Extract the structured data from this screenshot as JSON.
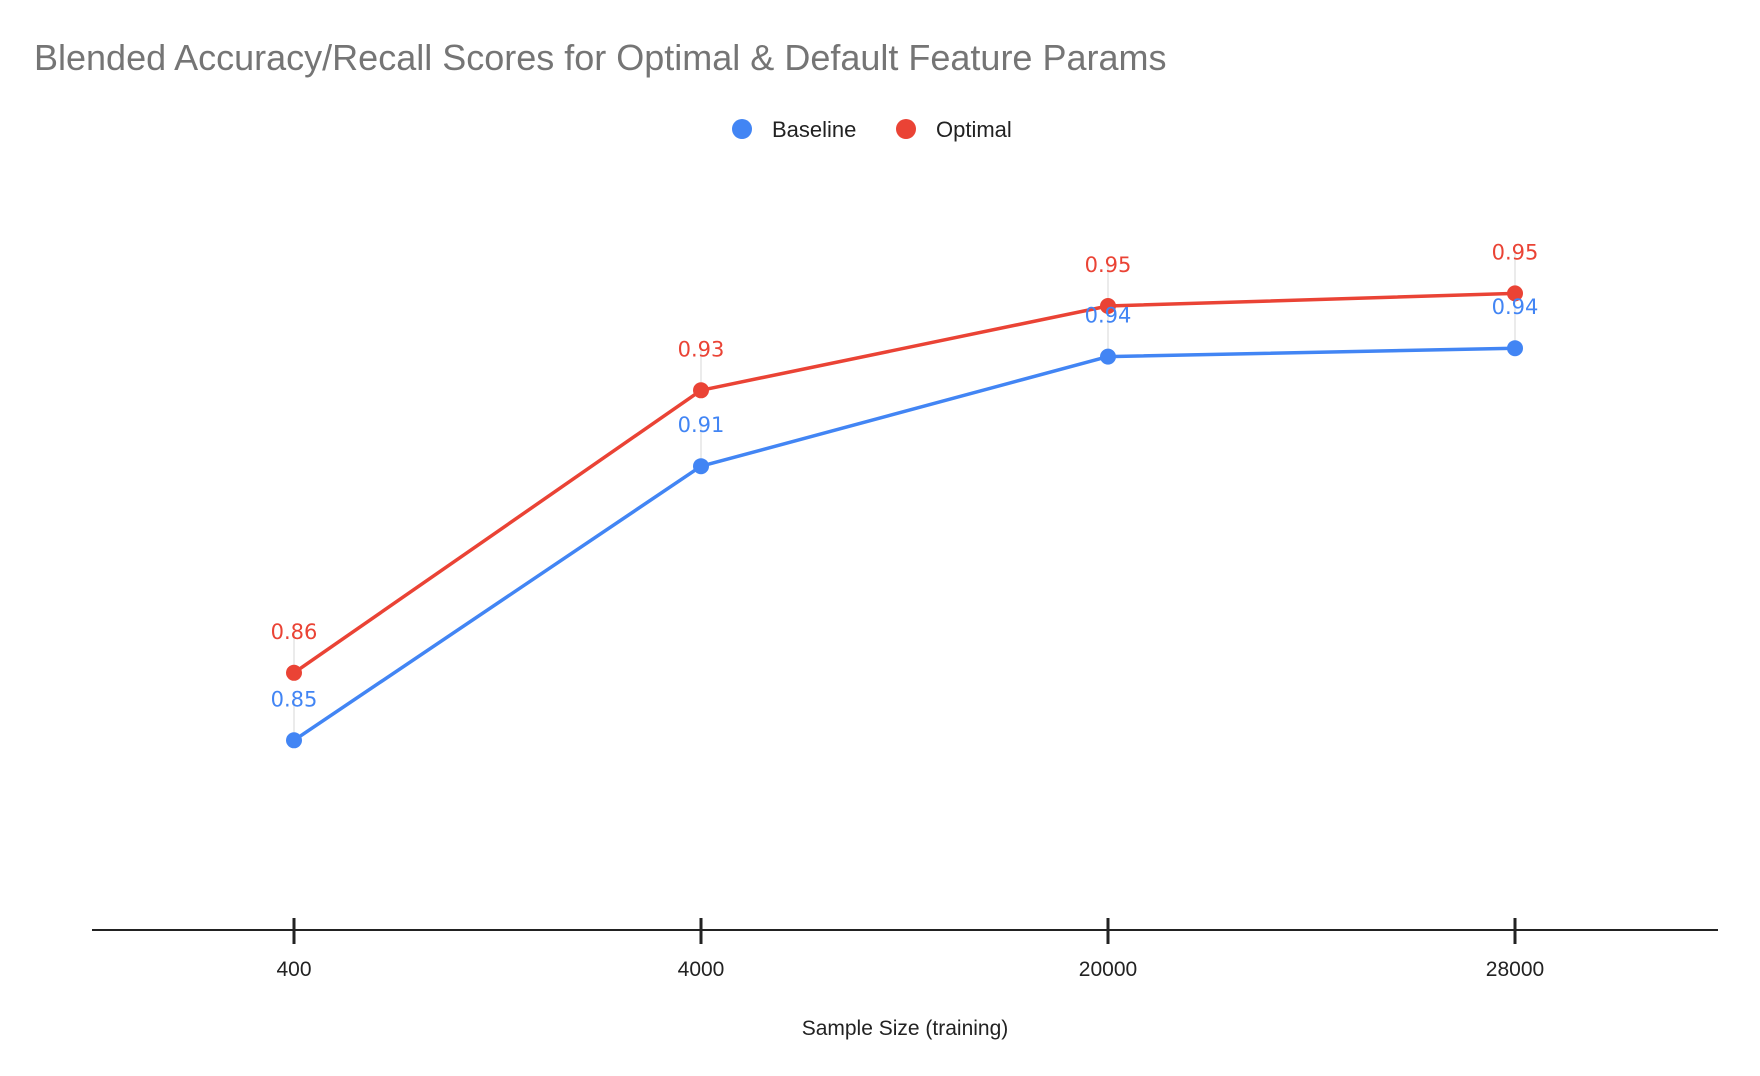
{
  "chart_data": {
    "type": "line",
    "title": "Blended Accuracy/Recall Scores for Optimal & Default Feature Params",
    "xlabel": "Sample Size (training)",
    "ylabel": "",
    "categories": [
      "400",
      "4000",
      "20000",
      "28000"
    ],
    "ylim": [
      0.8,
      0.985
    ],
    "grid": false,
    "legend_position": "top",
    "series": [
      {
        "name": "Baseline",
        "color": "#4285f4",
        "values": [
          0.845,
          0.91,
          0.936,
          0.938
        ],
        "labels": [
          "0.85",
          "0.91",
          "0.94",
          "0.94"
        ]
      },
      {
        "name": "Optimal",
        "color": "#ea4335",
        "values": [
          0.861,
          0.928,
          0.948,
          0.951
        ],
        "labels": [
          "0.86",
          "0.93",
          "0.95",
          "0.95"
        ]
      }
    ]
  }
}
